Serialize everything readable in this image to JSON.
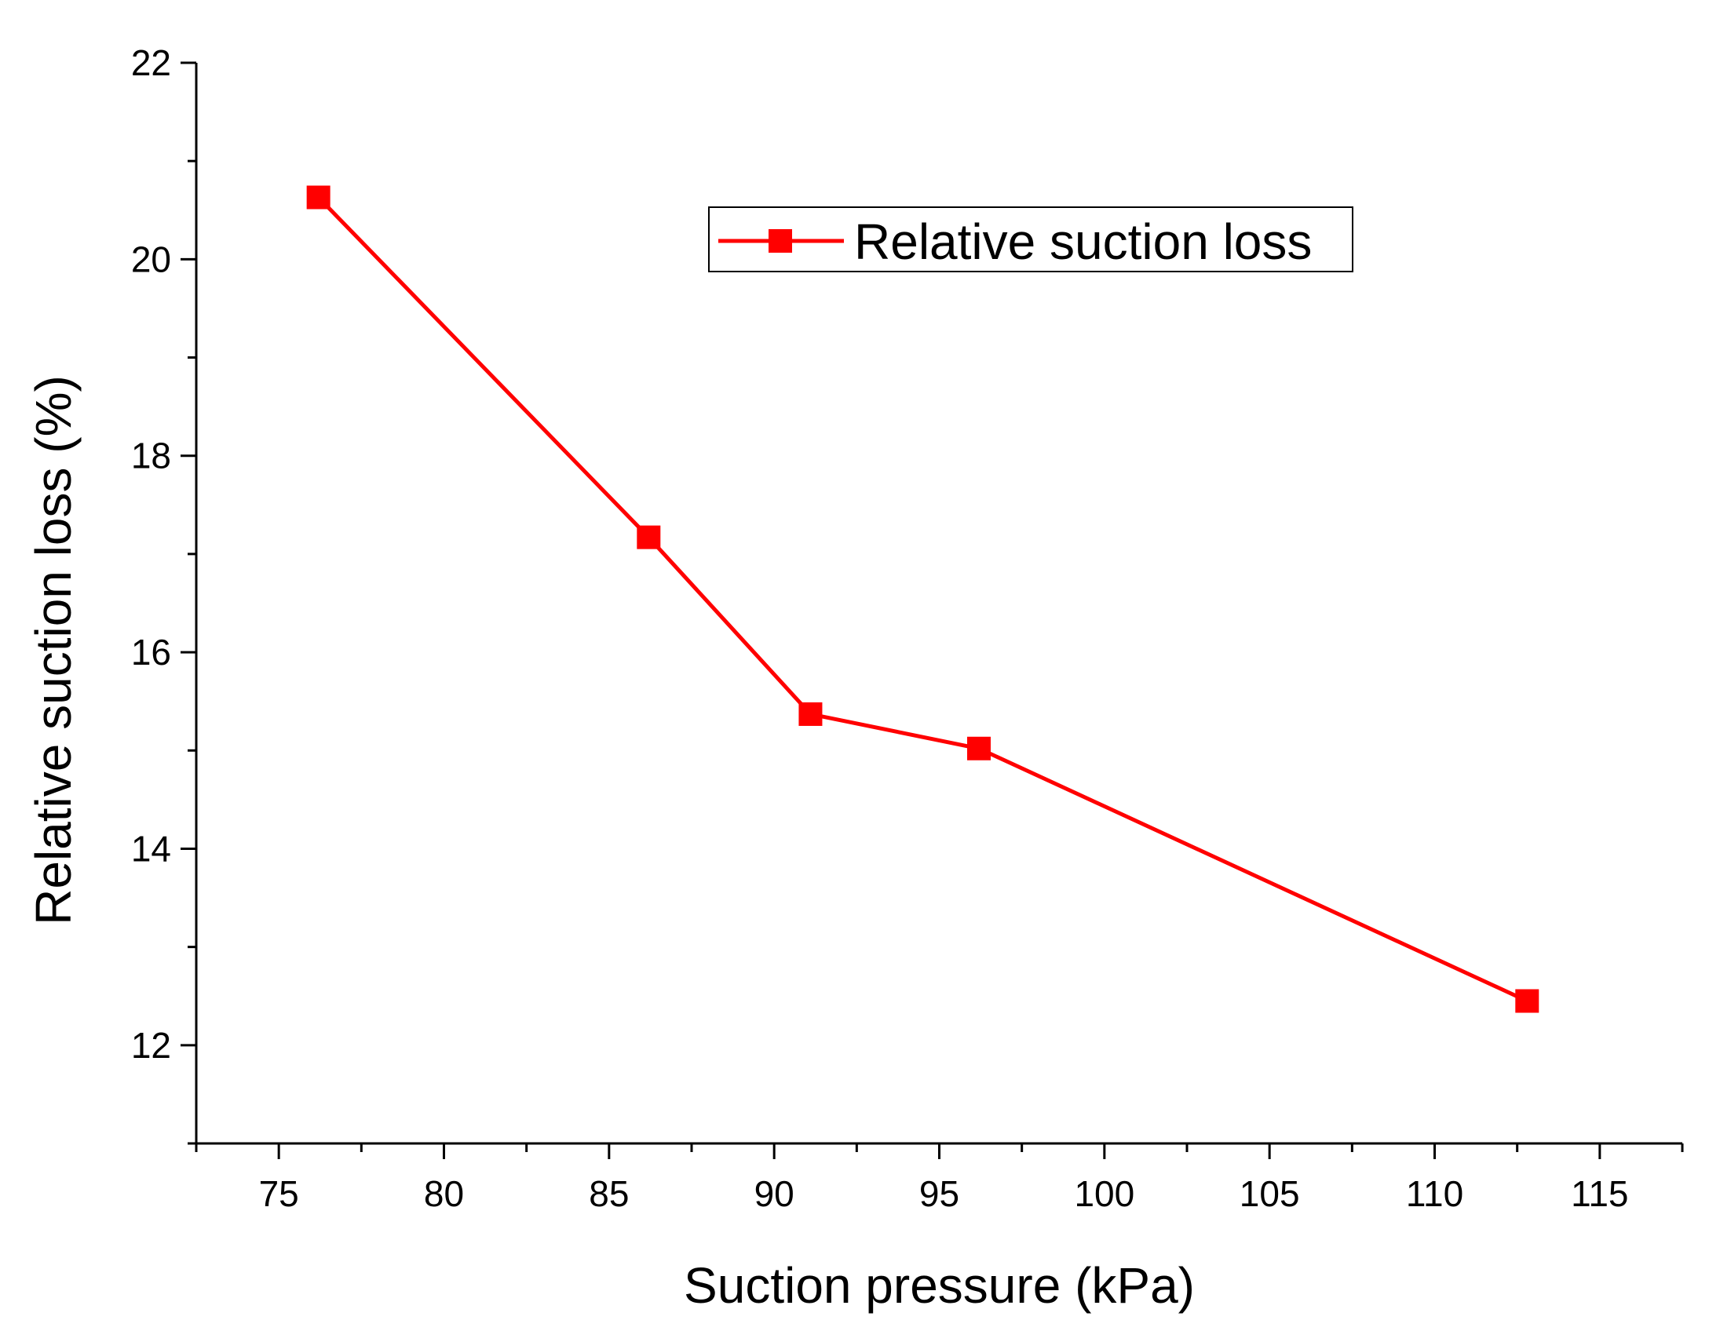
{
  "chart_data": {
    "type": "line",
    "title": "",
    "xlabel": "Suction pressure (kPa)",
    "ylabel": "Relative suction loss (%)",
    "xlim": [
      72.5,
      117.5
    ],
    "ylim": [
      11,
      22
    ],
    "x_ticks": [
      "75",
      "80",
      "85",
      "90",
      "95",
      "100",
      "105",
      "110",
      "115"
    ],
    "y_ticks": [
      "12",
      "14",
      "16",
      "18",
      "20",
      "22"
    ],
    "grid": false,
    "legend_position": "top-right",
    "series": [
      {
        "name": "Relative suction loss",
        "color": "#ff0000",
        "marker": "square",
        "x": [
          76.2,
          86.2,
          91.1,
          96.2,
          112.8
        ],
        "y": [
          20.63,
          17.17,
          15.37,
          15.02,
          12.45
        ]
      }
    ]
  }
}
